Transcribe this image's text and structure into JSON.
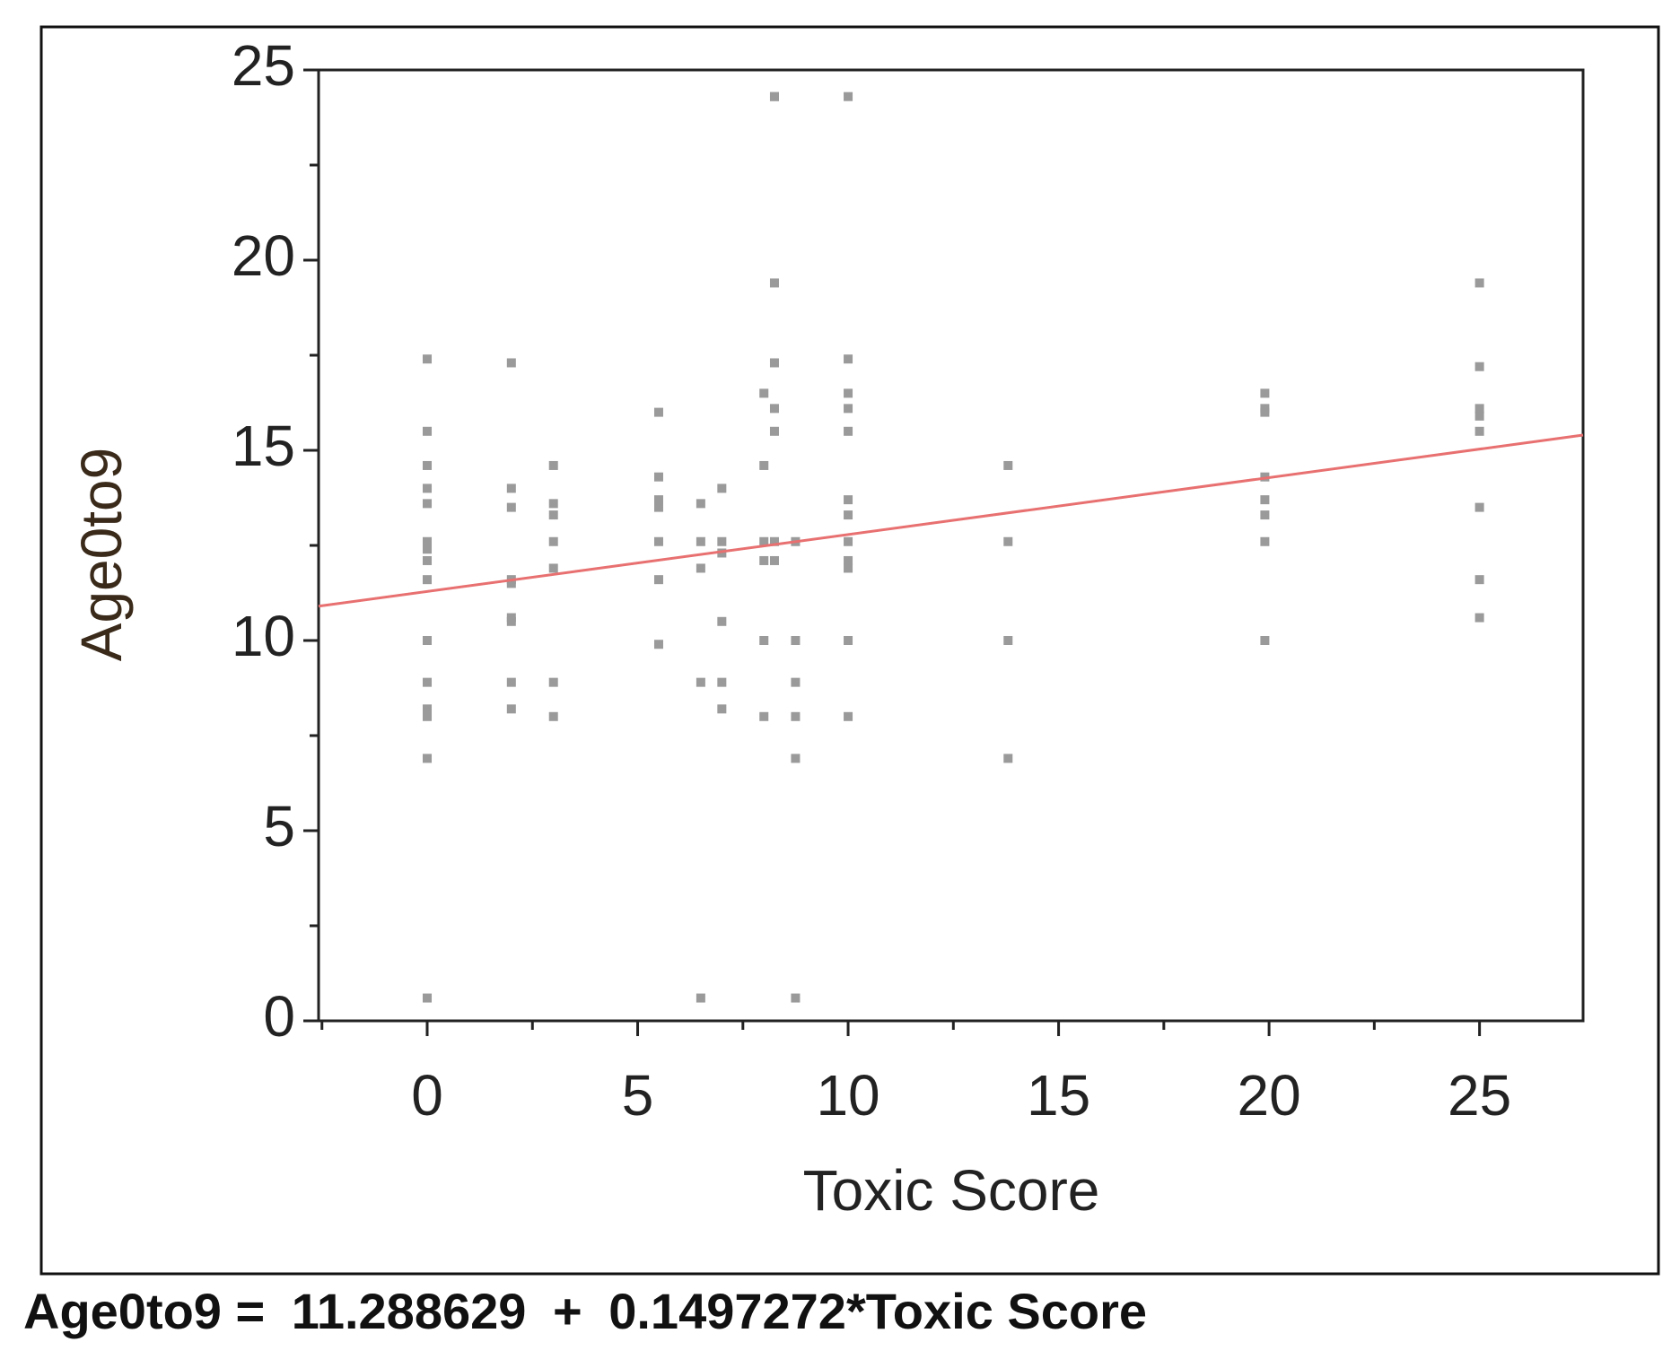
{
  "chart_data": {
    "type": "scatter",
    "x_label": "Toxic Score",
    "y_label": "Age0to9",
    "x": [
      0,
      0,
      0,
      0,
      0,
      0,
      0,
      0,
      0,
      0,
      0,
      0,
      0,
      0,
      0,
      2,
      2,
      2,
      2,
      2,
      2,
      2,
      2,
      2,
      3,
      3,
      3,
      3,
      3,
      3,
      3,
      5.5,
      5.5,
      5.5,
      5.5,
      5.5,
      5.5,
      5.5,
      6.5,
      6.5,
      6.5,
      6.5,
      6.5,
      7,
      7,
      7,
      7,
      7,
      7,
      8,
      8,
      8,
      8,
      8,
      8,
      8.25,
      8.25,
      8.25,
      8.25,
      8.25,
      8.25,
      8.25,
      8.25,
      8.75,
      8.75,
      8.75,
      8.75,
      8.75,
      8.75,
      10,
      10,
      10,
      10,
      10,
      10,
      10,
      10,
      10,
      10,
      10,
      10,
      13.8,
      13.8,
      13.8,
      13.8,
      19.9,
      19.9,
      19.9,
      19.9,
      19.9,
      19.9,
      19.9,
      19.9,
      25,
      25,
      25,
      25,
      25,
      25,
      25,
      25
    ],
    "y": [
      17.4,
      15.5,
      14.6,
      14.0,
      13.6,
      12.6,
      12.4,
      12.1,
      11.6,
      10.0,
      8.9,
      8.2,
      8.0,
      6.9,
      0.6,
      17.3,
      14.0,
      13.5,
      11.6,
      11.5,
      10.6,
      10.5,
      8.9,
      8.2,
      14.6,
      13.6,
      13.3,
      12.6,
      11.9,
      8.9,
      8.0,
      16.0,
      14.3,
      13.7,
      13.5,
      12.6,
      11.6,
      9.9,
      13.6,
      12.6,
      11.9,
      8.9,
      0.6,
      14.0,
      12.6,
      12.3,
      10.5,
      8.9,
      8.2,
      16.5,
      14.6,
      12.6,
      12.1,
      10.0,
      8.0,
      24.3,
      24.3,
      19.4,
      17.3,
      16.1,
      15.5,
      12.6,
      12.1,
      12.6,
      10.0,
      8.9,
      8.0,
      6.9,
      0.6,
      24.3,
      17.4,
      16.5,
      16.1,
      15.5,
      13.7,
      13.3,
      12.6,
      12.1,
      11.9,
      10.0,
      8.0,
      14.6,
      12.6,
      10.0,
      6.9,
      16.5,
      16.1,
      16.0,
      14.3,
      13.7,
      13.3,
      12.6,
      10.0,
      19.4,
      17.2,
      16.1,
      15.9,
      15.5,
      13.5,
      11.6,
      10.6
    ],
    "color": "#9a9a9a",
    "fit_color": "#e87070",
    "xlim": [
      -2.58,
      27.46
    ],
    "ylim": [
      0,
      25
    ],
    "xticks": [
      0,
      5,
      10,
      15,
      20,
      25
    ],
    "yticks": [
      0,
      5,
      10,
      15,
      20,
      25
    ],
    "xminorticks": [
      -2.5,
      2.5,
      7.5,
      12.5,
      17.5,
      22.5
    ],
    "yminorticks": [
      2.5,
      7.5,
      12.5,
      17.5,
      22.5
    ],
    "equation": {
      "lhs": "Age0to9 =",
      "intercept": 11.288629,
      "op": "+",
      "slope": 0.1497272,
      "rhs": "*Toxic Score"
    }
  }
}
